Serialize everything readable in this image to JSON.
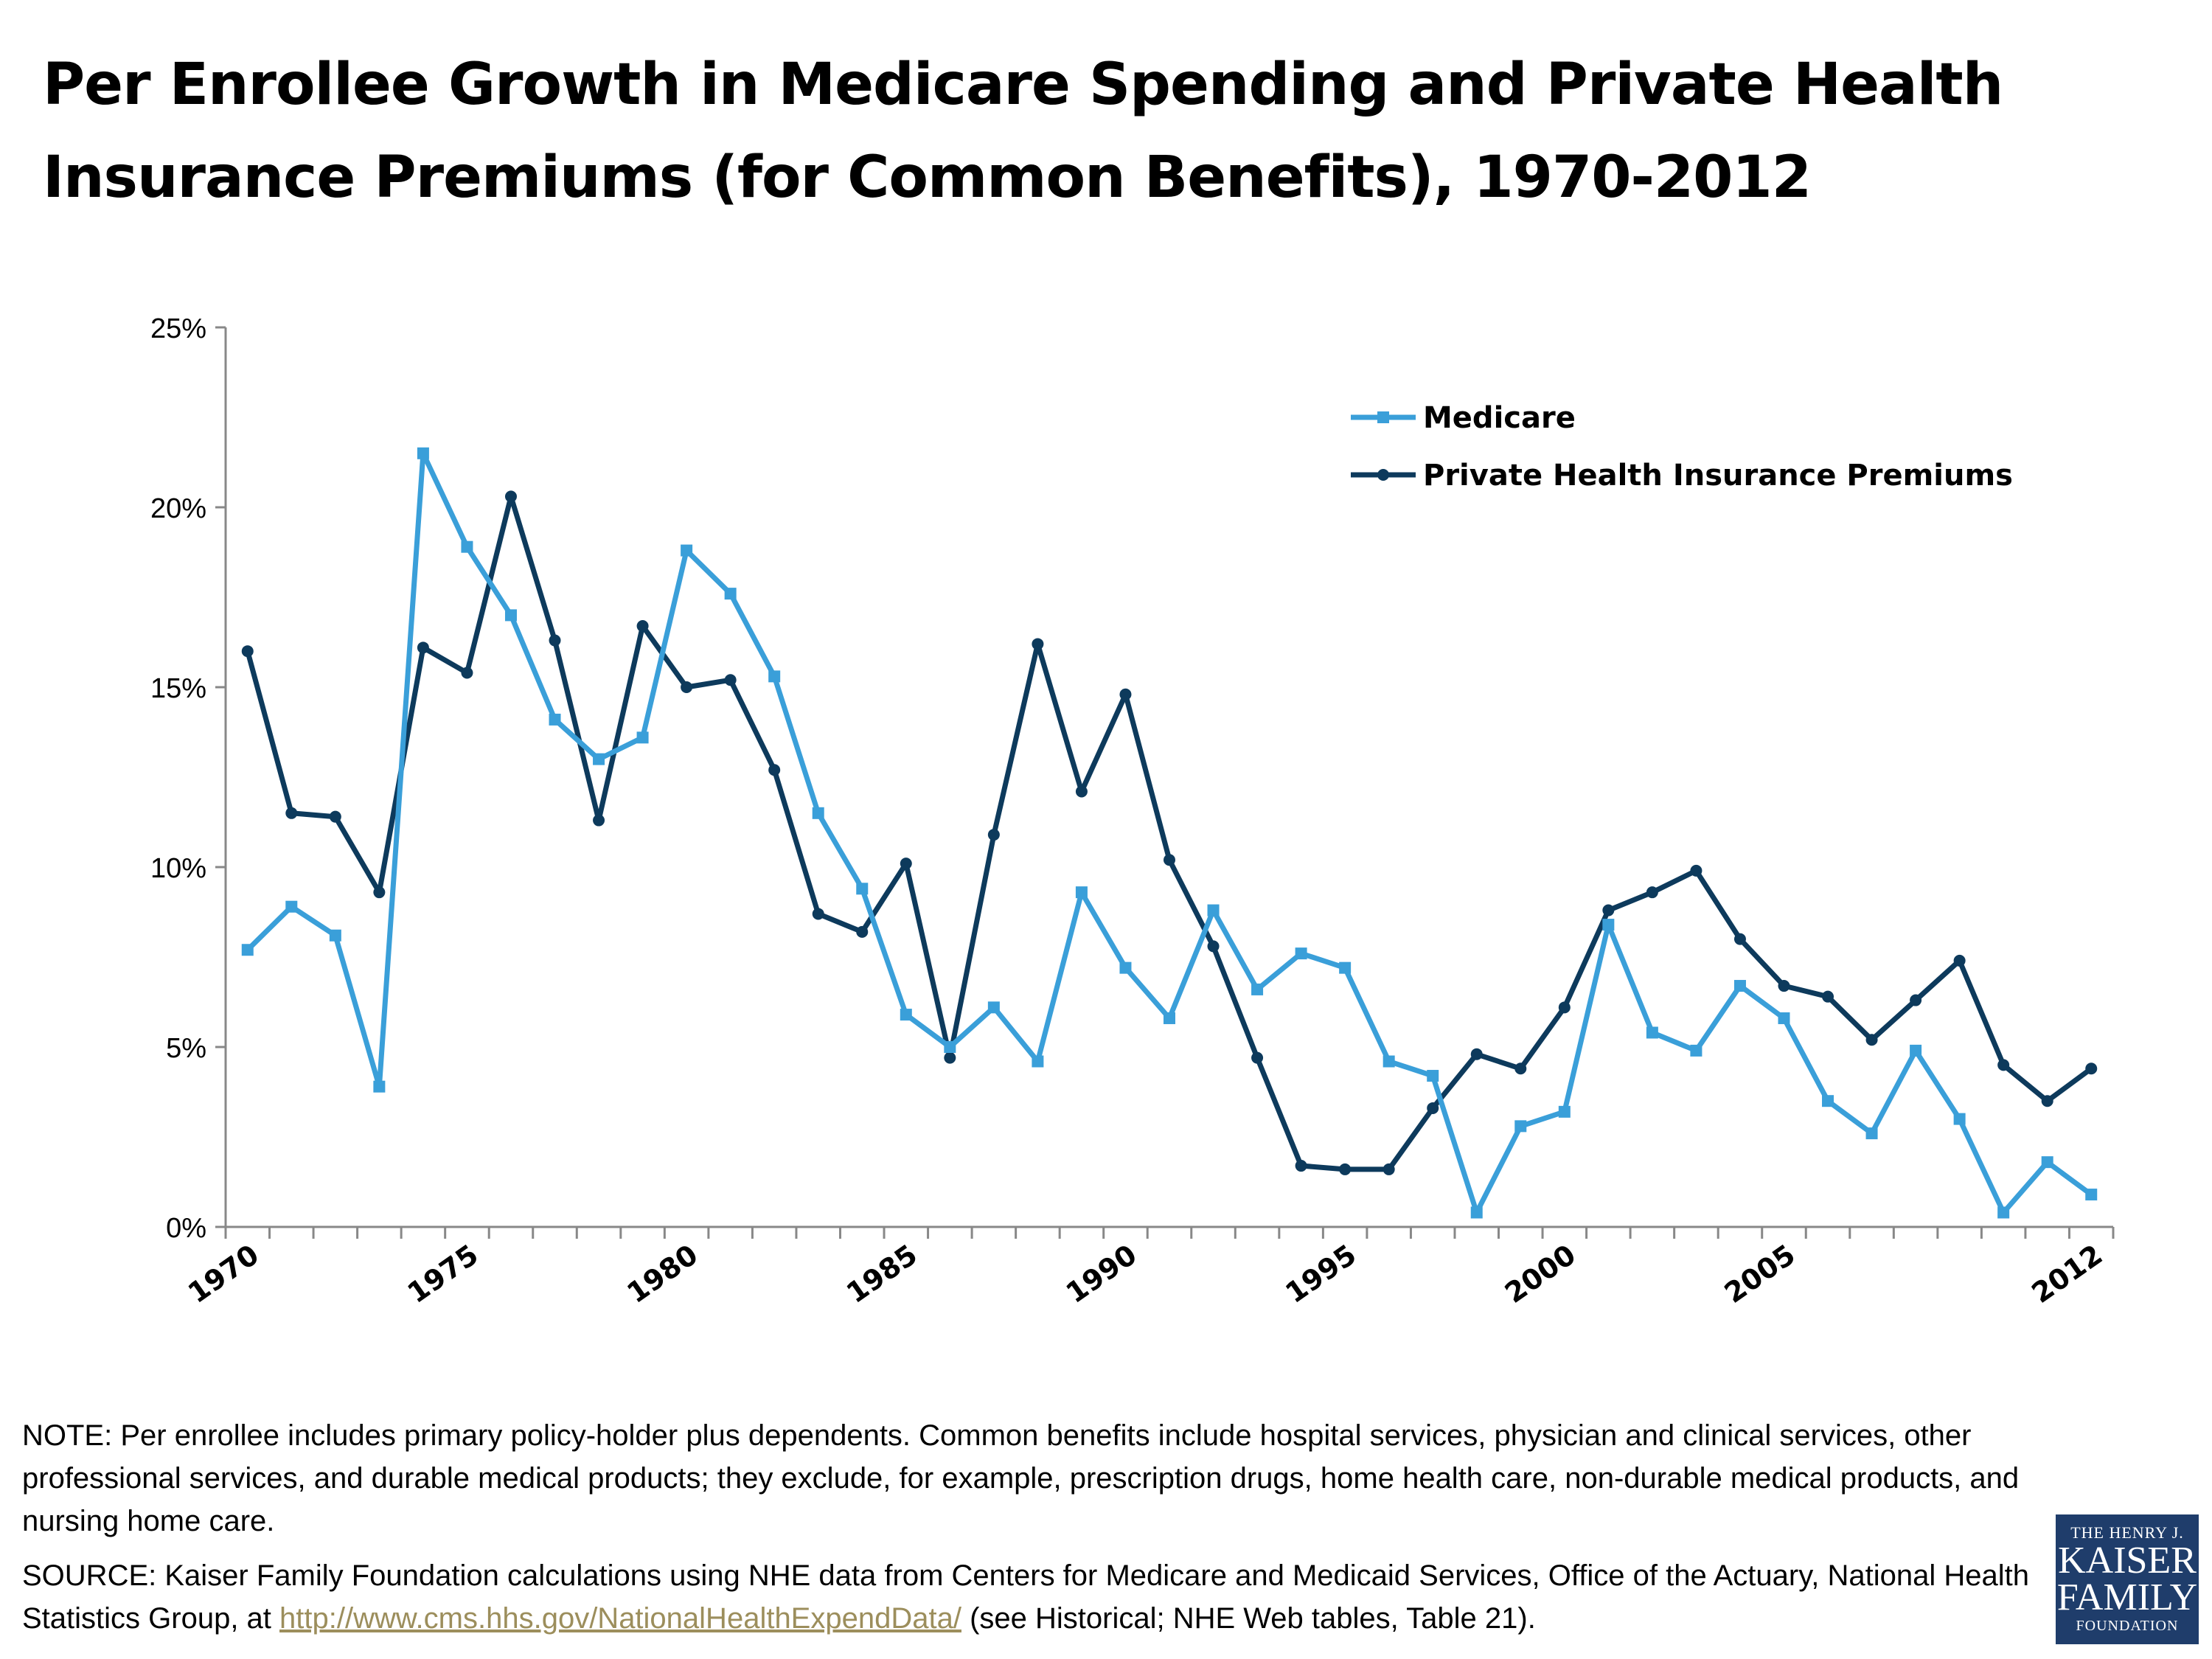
{
  "title": "Per Enrollee Growth in Medicare Spending and Private Health Insurance Premiums (for Common Benefits), 1970-2012",
  "note": "NOTE: Per enrollee includes primary policy-holder plus dependents. Common benefits include hospital services, physician and clinical services, other professional services, and durable medical products; they exclude, for example, prescription drugs, home health care, non-durable medical products, and nursing home care.",
  "source": {
    "prefix": "SOURCE: Kaiser Family Foundation calculations using NHE data from Centers for Medicare and Medicaid Services, Office of the Actuary, National Health Statistics Group, at ",
    "link_text": "http://www.cms.hhs.gov/NationalHealthExpendData/",
    "suffix": " (see Historical; NHE Web tables, Table 21)."
  },
  "logo": {
    "line1": "THE HENRY J.",
    "line2": "KAISER",
    "line3": "FAMILY",
    "line4": "FOUNDATION"
  },
  "colors": {
    "medicare": "#3a9fd9",
    "private": "#0d3a5c",
    "logo_bg": "#1f3d6b"
  },
  "chart_data": {
    "type": "line",
    "x": [
      1970,
      1971,
      1972,
      1973,
      1974,
      1975,
      1976,
      1977,
      1978,
      1979,
      1980,
      1981,
      1982,
      1983,
      1984,
      1985,
      1986,
      1987,
      1988,
      1989,
      1990,
      1991,
      1992,
      1993,
      1994,
      1995,
      1996,
      1997,
      1998,
      1999,
      2000,
      2001,
      2002,
      2003,
      2004,
      2005,
      2006,
      2007,
      2008,
      2009,
      2010,
      2011,
      2012
    ],
    "x_tick_labels": [
      "1970",
      "1975",
      "1980",
      "1985",
      "1990",
      "1995",
      "2000",
      "2005",
      "2012"
    ],
    "x_tick_years": [
      1970,
      1975,
      1980,
      1985,
      1990,
      1995,
      2000,
      2005,
      2012
    ],
    "y_tick_labels": [
      "0%",
      "5%",
      "10%",
      "15%",
      "20%",
      "25%"
    ],
    "y_tick_values": [
      0,
      5,
      10,
      15,
      20,
      25
    ],
    "ylim": [
      0,
      25
    ],
    "legend_position": "top-right",
    "grid": false,
    "series": [
      {
        "name": "Medicare",
        "marker": "square",
        "values": [
          7.7,
          8.9,
          8.1,
          3.9,
          21.5,
          18.9,
          17.0,
          14.1,
          13.0,
          13.6,
          18.8,
          17.6,
          15.3,
          11.5,
          9.4,
          5.9,
          5.0,
          6.1,
          4.6,
          9.3,
          7.2,
          5.8,
          8.8,
          6.6,
          7.6,
          7.2,
          4.6,
          4.2,
          0.4,
          2.8,
          3.2,
          8.4,
          5.4,
          4.9,
          6.7,
          5.8,
          3.5,
          2.6,
          4.9,
          3.0,
          0.4,
          1.8,
          0.9
        ]
      },
      {
        "name": "Private Health Insurance Premiums",
        "marker": "circle",
        "values": [
          16.0,
          11.5,
          11.4,
          9.3,
          16.1,
          15.4,
          20.3,
          16.3,
          11.3,
          16.7,
          15.0,
          15.2,
          12.7,
          8.7,
          8.2,
          10.1,
          4.7,
          10.9,
          16.2,
          12.1,
          14.8,
          10.2,
          7.8,
          4.7,
          1.7,
          1.6,
          1.6,
          3.3,
          4.8,
          4.4,
          6.1,
          8.8,
          9.3,
          9.9,
          8.0,
          6.7,
          6.4,
          5.2,
          6.3,
          7.4,
          4.5,
          3.5,
          4.4
        ]
      }
    ]
  }
}
